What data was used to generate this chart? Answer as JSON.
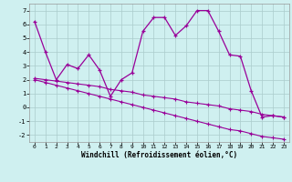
{
  "xlabel": "Windchill (Refroidissement éolien,°C)",
  "background_color": "#cff0f0",
  "line_color": "#990099",
  "grid_color": "#aacccc",
  "xlim": [
    -0.5,
    23.5
  ],
  "ylim": [
    -2.5,
    7.5
  ],
  "yticks": [
    -2,
    -1,
    0,
    1,
    2,
    3,
    4,
    5,
    6,
    7
  ],
  "xticks": [
    0,
    1,
    2,
    3,
    4,
    5,
    6,
    7,
    8,
    9,
    10,
    11,
    12,
    13,
    14,
    15,
    16,
    17,
    18,
    19,
    20,
    21,
    22,
    23
  ],
  "series1_x": [
    0,
    1,
    2,
    3,
    4,
    5,
    6,
    7,
    8,
    9,
    10,
    11,
    12,
    13,
    14,
    15,
    16,
    17,
    18,
    19,
    20,
    21,
    22,
    23
  ],
  "series1_y": [
    6.2,
    4.0,
    2.0,
    3.1,
    2.8,
    3.8,
    2.7,
    0.8,
    2.0,
    2.5,
    5.5,
    6.5,
    6.5,
    5.2,
    5.9,
    7.0,
    7.0,
    5.5,
    3.8,
    3.7,
    1.2,
    -0.7,
    -0.6,
    -0.7
  ],
  "series2_x": [
    0,
    1,
    2,
    3,
    4,
    5,
    6,
    7,
    8,
    9,
    10,
    11,
    12,
    13,
    14,
    15,
    16,
    17,
    18,
    19,
    20,
    21,
    22,
    23
  ],
  "series2_y": [
    2.1,
    2.0,
    1.9,
    1.8,
    1.7,
    1.6,
    1.5,
    1.3,
    1.2,
    1.1,
    0.9,
    0.8,
    0.7,
    0.6,
    0.4,
    0.3,
    0.2,
    0.1,
    -0.1,
    -0.2,
    -0.3,
    -0.5,
    -0.6,
    -0.7
  ],
  "series3_x": [
    0,
    1,
    2,
    3,
    4,
    5,
    6,
    7,
    8,
    9,
    10,
    11,
    12,
    13,
    14,
    15,
    16,
    17,
    18,
    19,
    20,
    21,
    22,
    23
  ],
  "series3_y": [
    2.0,
    1.8,
    1.6,
    1.4,
    1.2,
    1.0,
    0.8,
    0.6,
    0.4,
    0.2,
    0.0,
    -0.2,
    -0.4,
    -0.6,
    -0.8,
    -1.0,
    -1.2,
    -1.4,
    -1.6,
    -1.7,
    -1.9,
    -2.1,
    -2.2,
    -2.3
  ]
}
